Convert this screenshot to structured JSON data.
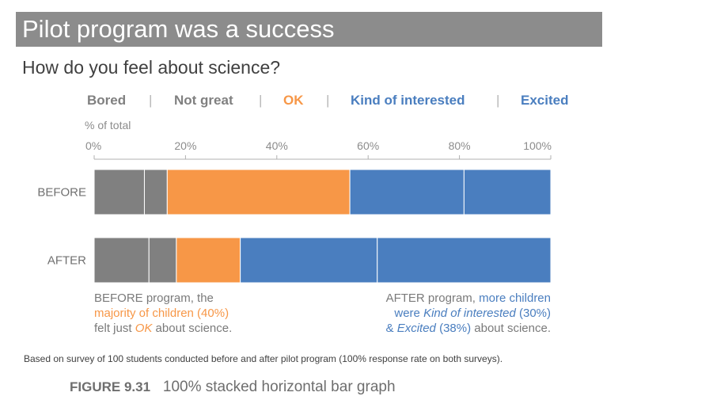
{
  "title": "Pilot program was a success",
  "subtitle": "How do you feel about science?",
  "legend": {
    "bored": "Bored",
    "not_great": "Not great",
    "ok": "OK",
    "kind_of_interested": "Kind of interested",
    "excited": "Excited",
    "separator": "|"
  },
  "colors": {
    "gray": "#808080",
    "orange": "#f79747",
    "blue": "#4a7ebf",
    "axis_text": "#8c8c8c",
    "title_bg": "#8c8c8c"
  },
  "annotations": {
    "left": {
      "part1": "BEFORE program, the",
      "part2": "majority of children (40%)",
      "part3": "felt just ",
      "part4": "OK",
      "part5": " about science."
    },
    "right": {
      "part1": "AFTER program, ",
      "part2": "more children",
      "part3": "were ",
      "part4": "Kind of interested",
      "part5": " (30%)",
      "part6": "& ",
      "part7": "Excited",
      "part8": " (38%)",
      "part9": " about science."
    }
  },
  "footnote": "Based on survey of 100 students conducted before and after pilot program (100% response rate on both surveys).",
  "caption": {
    "label": "FIGURE 9.31",
    "text": "100% stacked horizontal bar graph"
  },
  "chart_data": {
    "type": "bar",
    "orientation": "horizontal",
    "stacked": true,
    "axis_title": "% of total",
    "xlim": [
      0,
      100
    ],
    "xticks": [
      "0%",
      "20%",
      "40%",
      "60%",
      "80%",
      "100%"
    ],
    "categories": [
      "BEFORE",
      "AFTER"
    ],
    "series": [
      {
        "name": "Bored",
        "values": [
          11,
          12
        ]
      },
      {
        "name": "Not great",
        "values": [
          5,
          6
        ]
      },
      {
        "name": "OK",
        "values": [
          40,
          14
        ]
      },
      {
        "name": "Kind of interested",
        "values": [
          25,
          30
        ]
      },
      {
        "name": "Excited",
        "values": [
          19,
          38
        ]
      }
    ],
    "series_colors": [
      "#808080",
      "#808080",
      "#f79747",
      "#4a7ebf",
      "#4a7ebf"
    ],
    "grid": false,
    "legend": "top"
  }
}
